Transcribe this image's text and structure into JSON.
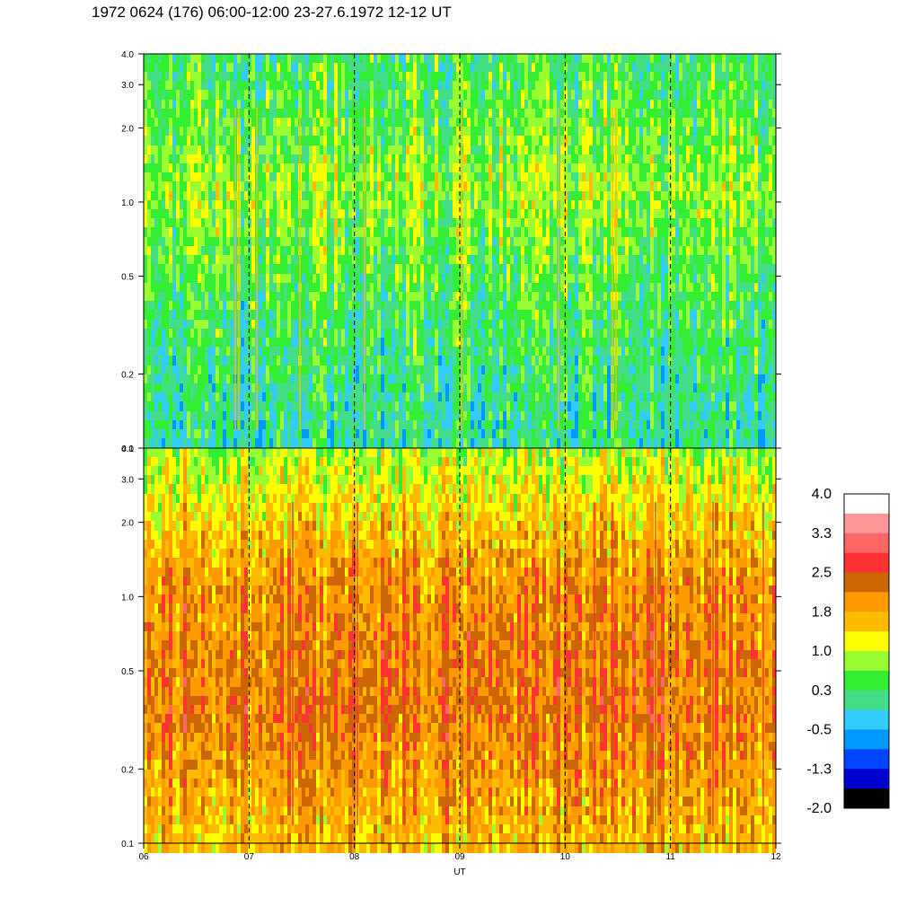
{
  "title": "1972 0624 (176) 06:00-12:00 23-27.6.1972  12-12 UT",
  "chart_data": [
    {
      "type": "heatmap",
      "panel": "upper",
      "xlabel": "",
      "ylabel": "",
      "y_scale": "log",
      "ylim": [
        0.1,
        4.0
      ],
      "y_ticks": [
        "4.0",
        "3.0",
        "2.0",
        "1.0",
        "0.5",
        "0.2",
        "0.1"
      ],
      "y_tick_values": [
        4.0,
        3.0,
        2.0,
        1.0,
        0.5,
        0.2,
        0.1
      ],
      "x_range": [
        6,
        12
      ],
      "dashed_hour_lines": [
        7,
        8,
        9,
        10,
        11
      ],
      "dominant_levels": {
        "top": 0.3,
        "middle": 0.8,
        "lower": 0.3,
        "bottom": 0.0
      }
    },
    {
      "type": "heatmap",
      "panel": "lower",
      "xlabel": "UT",
      "ylabel": "",
      "y_scale": "log",
      "ylim": [
        0.1,
        4.0
      ],
      "y_ticks": [
        "4.0",
        "3.0",
        "2.0",
        "1.0",
        "0.5",
        "0.2",
        "0.1"
      ],
      "y_tick_values": [
        4.0,
        3.0,
        2.0,
        1.0,
        0.5,
        0.2,
        0.1
      ],
      "x_ticks": [
        "06",
        "07",
        "08",
        "09",
        "10",
        "11",
        "12"
      ],
      "x_tick_values": [
        6,
        7,
        8,
        9,
        10,
        11,
        12
      ],
      "x_range": [
        6,
        12
      ],
      "dashed_hour_lines": [
        7,
        8,
        9,
        10,
        11
      ],
      "dominant_levels": {
        "top": 0.9,
        "middle": 2.0,
        "lower": 2.2,
        "bottom": 1.6
      }
    }
  ],
  "colorbar": {
    "labels": [
      "4.0",
      "3.3",
      "2.5",
      "1.8",
      "1.0",
      "0.3",
      "-0.5",
      "-1.3",
      "-2.0"
    ],
    "colors": [
      "#ffffff",
      "#ff9999",
      "#ff6666",
      "#ff3333",
      "#cc6600",
      "#ff9900",
      "#ffbb00",
      "#ffff00",
      "#99ff33",
      "#33ee33",
      "#44dd88",
      "#33ccff",
      "#0099ff",
      "#0044ff",
      "#0000cc",
      "#000000"
    ]
  }
}
